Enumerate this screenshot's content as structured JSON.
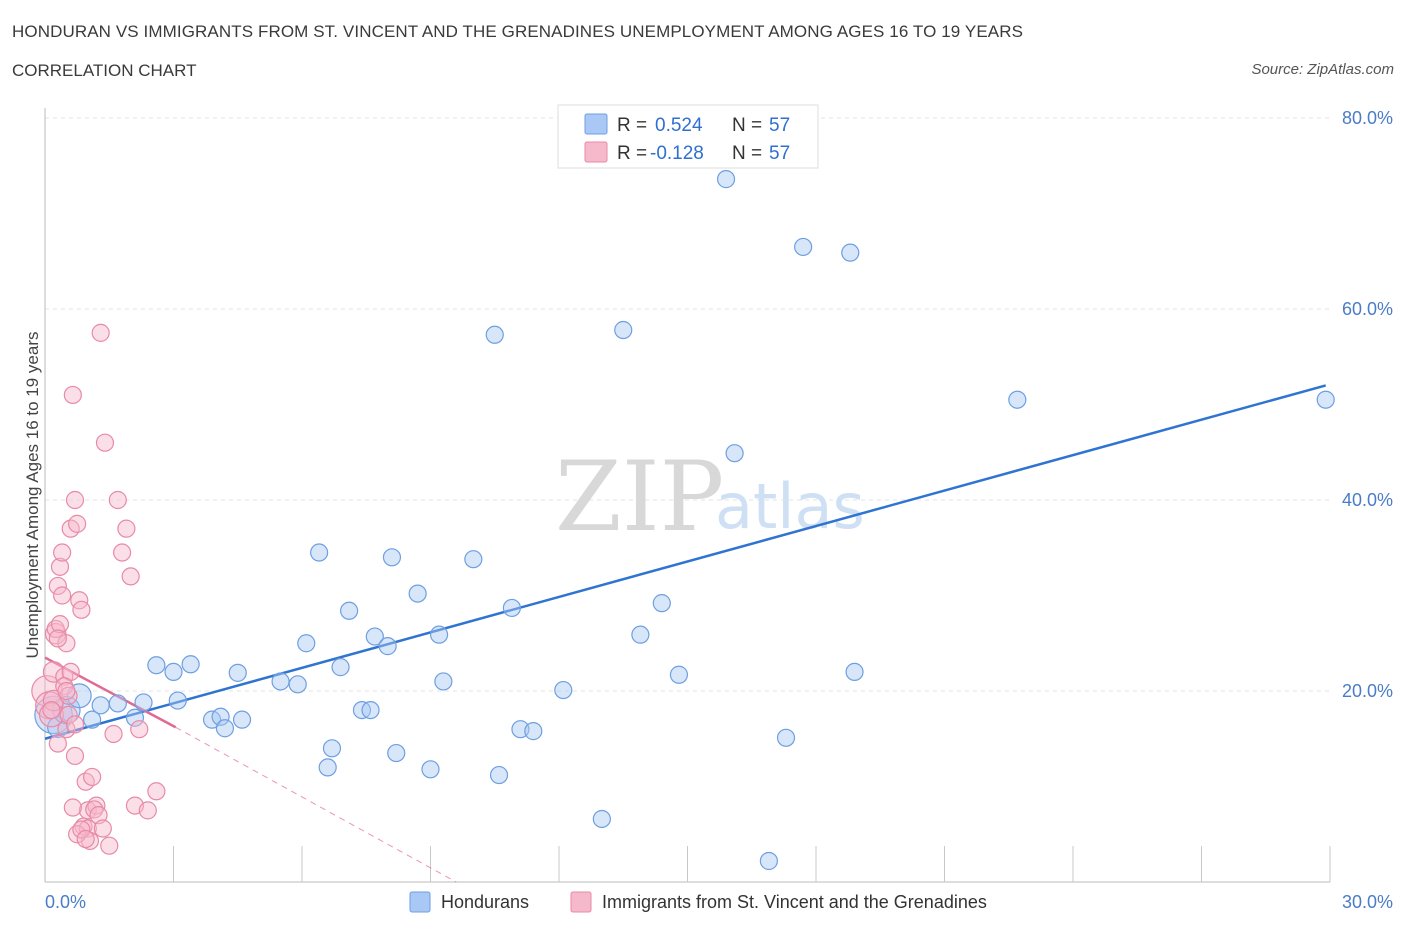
{
  "header": {
    "title": "HONDURAN VS IMMIGRANTS FROM ST. VINCENT AND THE GRENADINES UNEMPLOYMENT AMONG AGES 16 TO 19 YEARS",
    "subtitle": "CORRELATION CHART",
    "source": "Source: ZipAtlas.com"
  },
  "watermark": {
    "zip": "ZIP",
    "atlas": "atlas"
  },
  "legend": {
    "r_label": "R =",
    "n_label": "N =",
    "rows": [
      {
        "r": "0.524",
        "n": "57",
        "color": "#a9c8f5",
        "stroke": "#6e9fe0"
      },
      {
        "r": "-0.128",
        "n": "57",
        "color": "#f6b9cb",
        "stroke": "#e88aa6"
      }
    ]
  },
  "colors": {
    "blue_point": "#7aa7e6",
    "pink_point": "#ef96b3",
    "blue_line": "#2f74d0",
    "pink_line": "#e06a93"
  },
  "chart_data": {
    "type": "scatter",
    "title": "HONDURAN VS IMMIGRANTS FROM ST. VINCENT AND THE GRENADINES UNEMPLOYMENT AMONG AGES 16 TO 19 YEARS",
    "xlabel": "",
    "ylabel": "Unemployment Among Ages 16 to 19 years",
    "xlim": [
      0,
      30
    ],
    "ylim": [
      0,
      80
    ],
    "y_ticks": [
      20,
      40,
      60,
      80
    ],
    "y_tick_labels": [
      "20.0%",
      "40.0%",
      "60.0%",
      "80.0%"
    ],
    "x_tick_labels": [
      "0.0%",
      "30.0%"
    ],
    "x_minor_ticks": [
      3,
      6,
      9,
      12,
      15,
      18,
      21,
      24,
      27,
      30
    ],
    "grid": true,
    "series": [
      {
        "name": "Hondurans",
        "x": [
          0.2,
          0.3,
          0.5,
          0.8,
          1.1,
          1.3,
          1.7,
          2.1,
          2.3,
          2.6,
          3.0,
          3.1,
          3.4,
          3.9,
          4.1,
          4.2,
          4.5,
          4.6,
          5.5,
          5.9,
          6.1,
          6.4,
          6.6,
          6.7,
          6.9,
          7.1,
          7.4,
          7.6,
          7.7,
          8.0,
          8.1,
          8.2,
          8.7,
          9.0,
          9.2,
          9.3,
          10.0,
          10.5,
          10.6,
          10.9,
          11.1,
          11.4,
          12.1,
          13.0,
          13.5,
          13.9,
          14.4,
          14.8,
          15.9,
          16.1,
          16.9,
          17.3,
          17.7,
          18.8,
          18.9,
          22.7,
          29.9
        ],
        "y": [
          17.5,
          16.2,
          18.0,
          19.5,
          17.0,
          18.5,
          18.7,
          17.2,
          18.8,
          22.7,
          22.0,
          19.0,
          22.8,
          17.0,
          17.3,
          16.1,
          21.9,
          17.0,
          21.0,
          20.7,
          25.0,
          34.5,
          12.0,
          14.0,
          22.5,
          28.4,
          18.0,
          18.0,
          25.7,
          24.7,
          34.0,
          13.5,
          30.2,
          11.8,
          25.9,
          21.0,
          33.8,
          57.3,
          11.2,
          28.7,
          16.0,
          15.8,
          20.1,
          6.6,
          57.8,
          25.9,
          29.2,
          21.7,
          73.6,
          44.9,
          2.2,
          15.1,
          66.5,
          65.9,
          22.0,
          50.5,
          50.5
        ],
        "sizes": [
          2.2,
          1.2,
          1.6,
          1.4,
          1.0,
          1.0,
          1.0,
          1.0,
          1.0,
          1.0,
          1.0,
          1.0,
          1.0,
          1.0,
          1.0,
          1.0,
          1.0,
          1.0,
          1.0,
          1.0,
          1.0,
          1.0,
          1.0,
          1.0,
          1.0,
          1.0,
          1.0,
          1.0,
          1.0,
          1.0,
          1.0,
          1.0,
          1.0,
          1.0,
          1.0,
          1.0,
          1.0,
          1.0,
          1.0,
          1.0,
          1.0,
          1.0,
          1.0,
          1.0,
          1.0,
          1.0,
          1.0,
          1.0,
          1.0,
          1.0,
          1.0,
          1.0,
          1.0,
          1.0,
          1.0,
          1.0,
          1.0
        ]
      },
      {
        "name": "Immigrants from St. Vincent and the Grenadines",
        "x": [
          0.05,
          0.1,
          0.15,
          0.2,
          0.2,
          0.25,
          0.3,
          0.3,
          0.35,
          0.4,
          0.4,
          0.45,
          0.5,
          0.5,
          0.55,
          0.6,
          0.6,
          0.65,
          0.7,
          0.7,
          0.75,
          0.8,
          0.85,
          0.9,
          0.95,
          1.0,
          1.0,
          1.05,
          1.1,
          1.2,
          1.3,
          1.4,
          1.5,
          1.6,
          1.7,
          1.8,
          1.9,
          2.0,
          2.1,
          2.2,
          2.4,
          2.6,
          0.15,
          0.25,
          0.35,
          0.45,
          0.55,
          0.65,
          0.75,
          0.85,
          0.95,
          1.15,
          1.25,
          1.35,
          0.3,
          0.5,
          0.7
        ],
        "y": [
          20.0,
          18.5,
          17.5,
          22.0,
          19.0,
          26.0,
          31.0,
          14.5,
          33.0,
          34.5,
          30.0,
          21.5,
          16.0,
          25.0,
          17.5,
          37.0,
          22.0,
          51.0,
          40.0,
          13.2,
          37.5,
          29.5,
          28.5,
          5.8,
          10.5,
          7.5,
          5.6,
          4.3,
          11.0,
          8.0,
          57.5,
          46.0,
          3.8,
          15.5,
          40.0,
          34.5,
          37.0,
          32.0,
          8.0,
          16.0,
          7.5,
          9.5,
          18.0,
          26.5,
          27.0,
          20.5,
          19.5,
          7.8,
          5.0,
          5.5,
          4.5,
          7.6,
          7.0,
          5.6,
          25.5,
          20.0,
          16.5
        ],
        "sizes": [
          1.8,
          1.6,
          1.4,
          1.2,
          1.2,
          1.2,
          1.0,
          1.0,
          1.0,
          1.0,
          1.0,
          1.0,
          1.0,
          1.0,
          1.0,
          1.0,
          1.0,
          1.0,
          1.0,
          1.0,
          1.0,
          1.0,
          1.0,
          1.0,
          1.0,
          1.0,
          1.0,
          1.0,
          1.0,
          1.0,
          1.0,
          1.0,
          1.0,
          1.0,
          1.0,
          1.0,
          1.0,
          1.0,
          1.0,
          1.0,
          1.0,
          1.0,
          1.0,
          1.0,
          1.0,
          1.0,
          1.0,
          1.0,
          1.0,
          1.0,
          1.0,
          1.0,
          1.0,
          1.0,
          1.0,
          1.0,
          1.0
        ]
      }
    ],
    "trend_lines": [
      {
        "series": "Hondurans",
        "x0": 0,
        "y0": 15.0,
        "x1": 29.9,
        "y1": 52.0,
        "style": "solid"
      },
      {
        "series": "Immigrants from St. Vincent and the Grenadines",
        "x0": 0,
        "y0": 23.5,
        "x1": 3.05,
        "y1": 16.2,
        "style": "solid"
      },
      {
        "series": "Immigrants from St. Vincent and the Grenadines",
        "x0": 3.05,
        "y0": 16.2,
        "x1": 9.6,
        "y1": 0,
        "style": "dashed"
      }
    ]
  },
  "bottom_legend": [
    {
      "label": "Hondurans",
      "color": "#a9c8f5",
      "stroke": "#6e9fe0"
    },
    {
      "label": "Immigrants from St. Vincent and the Grenadines",
      "color": "#f6b9cb",
      "stroke": "#e88aa6"
    }
  ]
}
